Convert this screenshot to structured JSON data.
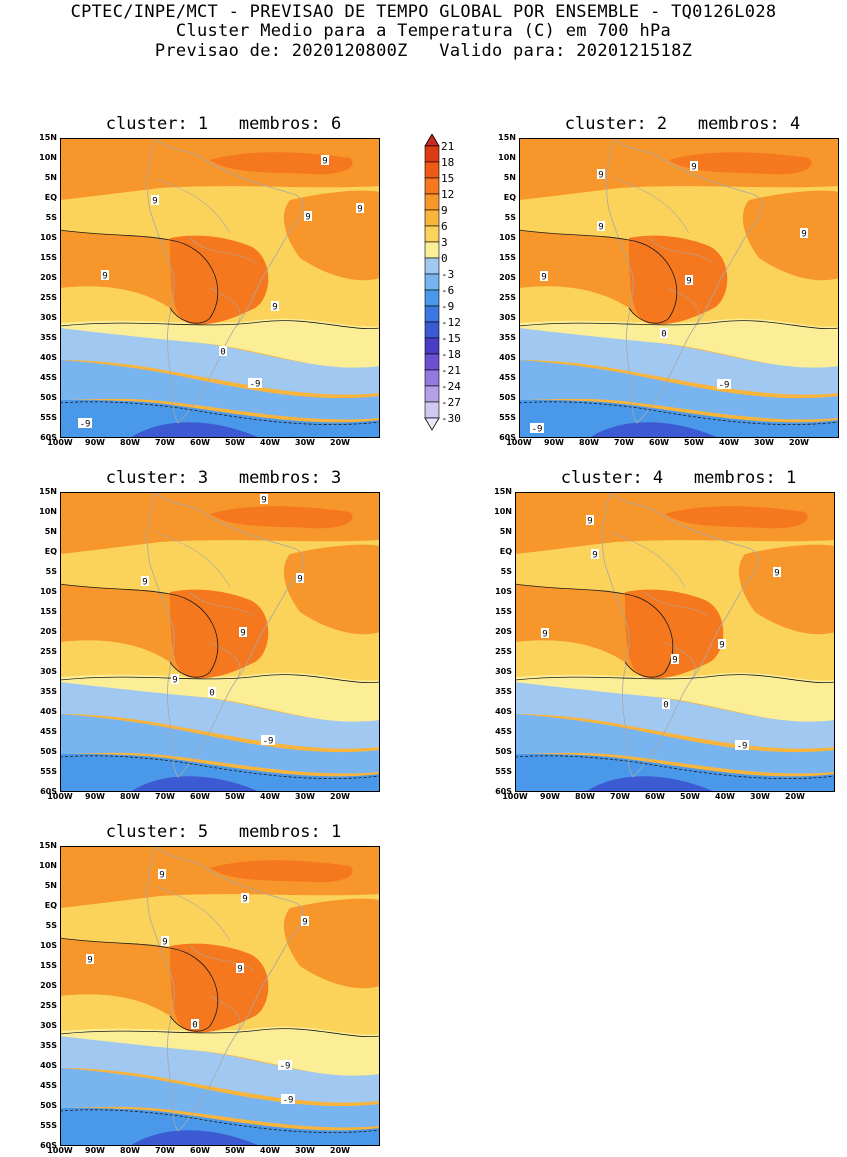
{
  "header": {
    "line1": "CPTEC/INPE/MCT - PREVISAO DE TEMPO GLOBAL POR ENSEMBLE - TQ0126L028",
    "line2": "Cluster Medio para a Temperatura (C) em 700 hPa",
    "line3": "Previsao de: 2020120800Z   Valido para: 2020121518Z"
  },
  "panels": [
    {
      "title": "cluster: 1   membros: 6",
      "cluster": 1,
      "membros": 6,
      "contour_labels": [
        "9",
        "9",
        "9",
        "9",
        "9",
        "9",
        "0",
        "-9",
        "-9"
      ]
    },
    {
      "title": "cluster: 2   membros: 4",
      "cluster": 2,
      "membros": 4,
      "contour_labels": [
        "9",
        "9",
        "9",
        "9",
        "9",
        "9",
        "0",
        "-9",
        "-9"
      ]
    },
    {
      "title": "cluster: 3   membros: 3",
      "cluster": 3,
      "membros": 3,
      "contour_labels": [
        "9",
        "9",
        "9",
        "9",
        "9",
        "0",
        "-9"
      ]
    },
    {
      "title": "cluster: 4   membros: 1",
      "cluster": 4,
      "membros": 1,
      "contour_labels": [
        "9",
        "9",
        "9",
        "9",
        "9",
        "9",
        "0",
        "-9"
      ]
    },
    {
      "title": "cluster: 5   membros: 1",
      "cluster": 5,
      "membros": 1,
      "contour_labels": [
        "9",
        "9",
        "9",
        "9",
        "9",
        "9",
        "0",
        "-9",
        "-9"
      ]
    }
  ],
  "axes": {
    "lat_labels": [
      "15N",
      "10N",
      "5N",
      "EQ",
      "5S",
      "10S",
      "15S",
      "20S",
      "25S",
      "30S",
      "35S",
      "40S",
      "45S",
      "50S",
      "55S",
      "60S"
    ],
    "lon_labels": [
      "100W",
      "90W",
      "80W",
      "70W",
      "60W",
      "50W",
      "40W",
      "30W",
      "20W"
    ]
  },
  "legend": {
    "labels": [
      "21",
      "18",
      "15",
      "12",
      "9",
      "6",
      "3",
      "0",
      "-3",
      "-6",
      "-9",
      "-12",
      "-15",
      "-18",
      "-21",
      "-24",
      "-27",
      "-30"
    ],
    "colors": [
      "#c8281e",
      "#dc3c14",
      "#f05a14",
      "#f5781e",
      "#f7962a",
      "#f9b43c",
      "#fbd25a",
      "#fbee96",
      "#a0c8f0",
      "#78b4f0",
      "#4a98ea",
      "#3c78e1",
      "#3c5ad2",
      "#4b3cc8",
      "#6e50d2",
      "#9678e1",
      "#b4a0e6",
      "#d2c8f0",
      "#ece8f8"
    ]
  },
  "colors": {
    "land_outline": "#a8a8a8",
    "contour": "#1a1a1a"
  }
}
